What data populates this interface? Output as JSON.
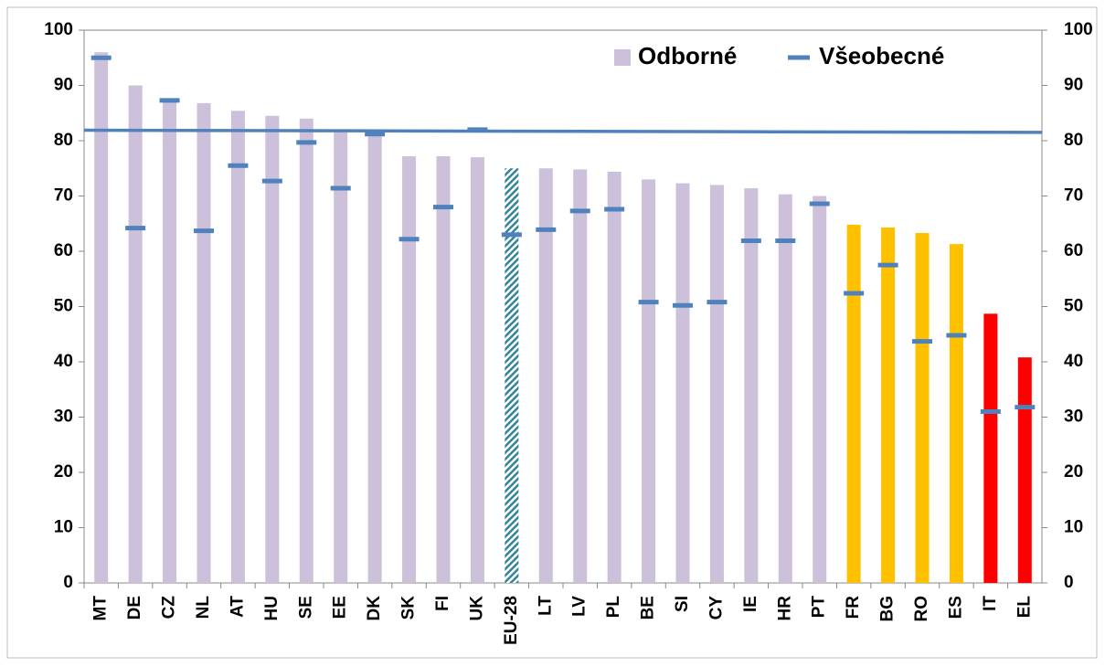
{
  "chart_data": {
    "type": "bar-marker",
    "categories": [
      "MT",
      "DE",
      "CZ",
      "NL",
      "AT",
      "HU",
      "SE",
      "EE",
      "DK",
      "SK",
      "FI",
      "UK",
      "EU-28",
      "LT",
      "LV",
      "PL",
      "BE",
      "SI",
      "CY",
      "IE",
      "HR",
      "PT",
      "FR",
      "BG",
      "RO",
      "ES",
      "IT",
      "EL"
    ],
    "series": [
      {
        "name": "Odborné",
        "color": "#ccc0da",
        "colors": [
          "#ccc0da",
          "#ccc0da",
          "#ccc0da",
          "#ccc0da",
          "#ccc0da",
          "#ccc0da",
          "#ccc0da",
          "#ccc0da",
          "#ccc0da",
          "#ccc0da",
          "#ccc0da",
          "#ccc0da",
          "#31859c",
          "#ccc0da",
          "#ccc0da",
          "#ccc0da",
          "#ccc0da",
          "#ccc0da",
          "#ccc0da",
          "#ccc0da",
          "#ccc0da",
          "#ccc0da",
          "#ffc000",
          "#ffc000",
          "#ffc000",
          "#ffc000",
          "#ff0000",
          "#ff0000"
        ],
        "hatch_index": 12,
        "values": [
          96,
          90,
          87.5,
          86.8,
          85.4,
          84.5,
          84,
          82,
          81.5,
          77.2,
          77.2,
          77,
          75,
          75,
          74.8,
          74.4,
          73,
          72.3,
          72,
          71.4,
          70.3,
          70,
          64.8,
          64.3,
          63.3,
          61.3,
          48.7,
          40.8
        ]
      },
      {
        "name": "Všeobecné",
        "color": "#4f81bd",
        "values": [
          95,
          64.2,
          87.3,
          63.7,
          75.5,
          72.7,
          79.7,
          71.4,
          81.2,
          62.2,
          68,
          82,
          63,
          63.9,
          67.3,
          67.6,
          50.8,
          50.2,
          50.8,
          61.9,
          61.9,
          68.6,
          52.4,
          57.5,
          43.7,
          44.8,
          31,
          31.8
        ]
      }
    ],
    "reference_line": {
      "values": [
        81.9,
        81.5
      ],
      "color": "#4f81bd"
    },
    "ylim": [
      0,
      100
    ],
    "yticks": [
      0,
      10,
      20,
      30,
      40,
      50,
      60,
      70,
      80,
      90,
      100
    ],
    "y2lim": [
      0,
      100
    ],
    "y2ticks": [
      0,
      10,
      20,
      30,
      40,
      50,
      60,
      70,
      80,
      90,
      100
    ],
    "legend": "top-right"
  }
}
